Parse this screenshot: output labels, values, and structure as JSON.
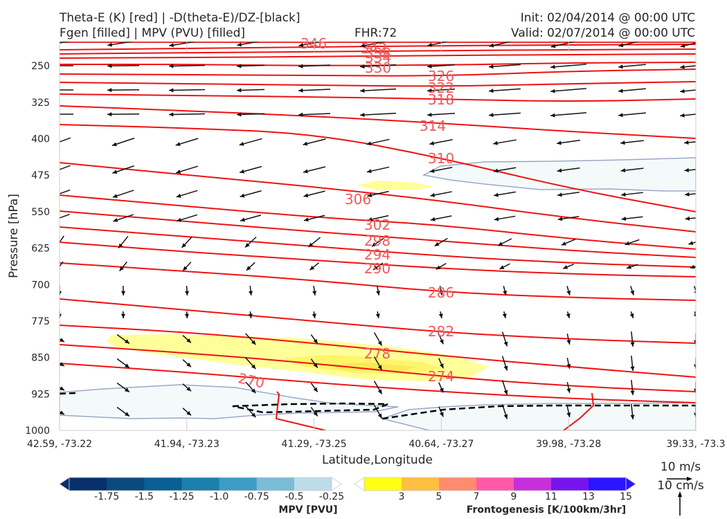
{
  "header": {
    "line1_left": "Theta-E (K) [red] | -D(theta-E)/DZ-[black]",
    "line2_left": "Fgen [filled] | MPV (PVU) [filled]",
    "fhr": "FHR:72",
    "init": "Init: 02/04/2014 @ 00:00 UTC",
    "valid": "Valid: 02/07/2014 @ 00:00 UTC"
  },
  "chart_data": {
    "type": "cross-section",
    "ylabel": "Pressure [hPa]",
    "xlabel": "Latitude,Longitude",
    "y_scale": "inverted",
    "ylim": [
      1000,
      200
    ],
    "y_ticks": [
      250,
      325,
      400,
      475,
      550,
      625,
      700,
      775,
      850,
      925,
      1000
    ],
    "x_ticks": [
      "42.59, -73.22",
      "41.94, -73.23",
      "41.29, -73.25",
      "40.64, -73.27",
      "39.98, -73.28",
      "39.33, -73.3"
    ],
    "theta_e_contours": [
      {
        "label": "270",
        "color": "#ee1111"
      },
      {
        "label": "274",
        "color": "#ee1111"
      },
      {
        "label": "278",
        "color": "#ee1111"
      },
      {
        "label": "282",
        "color": "#ee1111"
      },
      {
        "label": "286",
        "color": "#ee1111"
      },
      {
        "label": "290",
        "color": "#ee1111"
      },
      {
        "label": "294",
        "color": "#ee1111"
      },
      {
        "label": "298",
        "color": "#ee1111"
      },
      {
        "label": "302",
        "color": "#ee1111"
      },
      {
        "label": "306",
        "color": "#ee1111"
      },
      {
        "label": "310",
        "color": "#ee1111"
      },
      {
        "label": "314",
        "color": "#ee1111"
      },
      {
        "label": "318",
        "color": "#ee1111"
      },
      {
        "label": "322",
        "color": "#ee1111"
      },
      {
        "label": "326",
        "color": "#ee1111"
      },
      {
        "label": "330",
        "color": "#ee1111"
      },
      {
        "label": "334",
        "color": "#ee1111"
      },
      {
        "label": "338",
        "color": "#ee1111"
      },
      {
        "label": "342",
        "color": "#ee1111"
      },
      {
        "label": "346",
        "color": "#ee1111"
      }
    ],
    "mpv_colorbar": {
      "title": "MPV [PVU]",
      "labels": [
        "-1.75",
        "-1.5",
        "-1.25",
        "-1.0",
        "-0.75",
        "-0.5",
        "-0.25"
      ],
      "colors": [
        "#08306b",
        "#08306b",
        "#0b4a7f",
        "#0a5f94",
        "#1a7fab",
        "#3d9cc4",
        "#7abbd6",
        "#bcdde8",
        "#ffffff"
      ]
    },
    "fgen_colorbar": {
      "title": "Frontogenesis [K/100km/3hr]",
      "labels": [
        "3",
        "5",
        "7",
        "9",
        "11",
        "13",
        "15"
      ],
      "colors": [
        "#ffffff",
        "#ffff14",
        "#ffbf40",
        "#ff8c6e",
        "#ff59a8",
        "#c62fdc",
        "#7614ee",
        "#2b14ff",
        "#2b14ff"
      ]
    },
    "reference_vectors": [
      "10 m/s",
      "10 cm/s"
    ],
    "colors": {
      "theta_e": "#ee1111",
      "ddz": "#000000",
      "mpv_fill": "#f4fafa",
      "mpv_edge": "#9aa8c8",
      "fgen_light": "#ffff99",
      "fgen_mid": "#ffff66",
      "fgen_dark": "#f7e84a"
    }
  }
}
